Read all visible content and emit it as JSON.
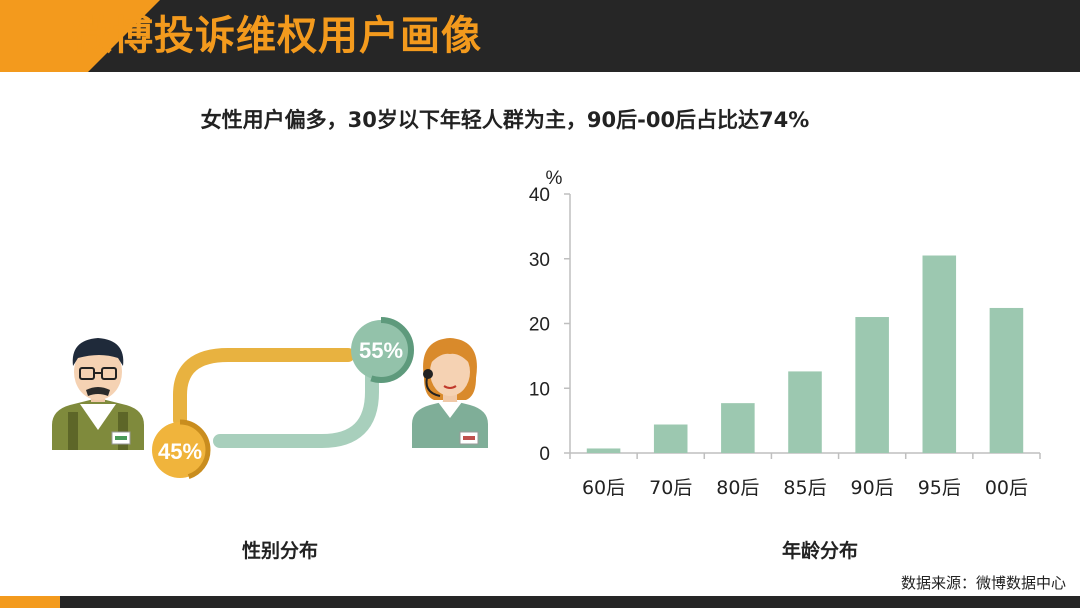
{
  "header": {
    "title": "微博投诉维权用户画像"
  },
  "subtitle": "女性用户偏多，30岁以下年轻人群为主，90后-00后占比达74%",
  "gender": {
    "label": "性别分布",
    "male_pct": "45%",
    "female_pct": "55%",
    "male_value": 45,
    "female_value": 55
  },
  "chart_data": {
    "type": "bar",
    "title": "年龄分布",
    "unit": "%",
    "categories": [
      "60后",
      "70后",
      "80后",
      "85后",
      "90后",
      "95后",
      "00后"
    ],
    "values": [
      0.7,
      4.4,
      7.7,
      12.6,
      21.0,
      30.5,
      22.4
    ],
    "ylim": [
      0,
      40
    ],
    "yticks": [
      0,
      10,
      20,
      30,
      40
    ],
    "bar_color": "#9cc8b0",
    "grid": false
  },
  "source": "数据来源：微博数据中心",
  "colors": {
    "accent": "#f39a1d",
    "dark": "#262626",
    "male_connector": "#e8b240",
    "female_connector": "#a8cfbc"
  }
}
